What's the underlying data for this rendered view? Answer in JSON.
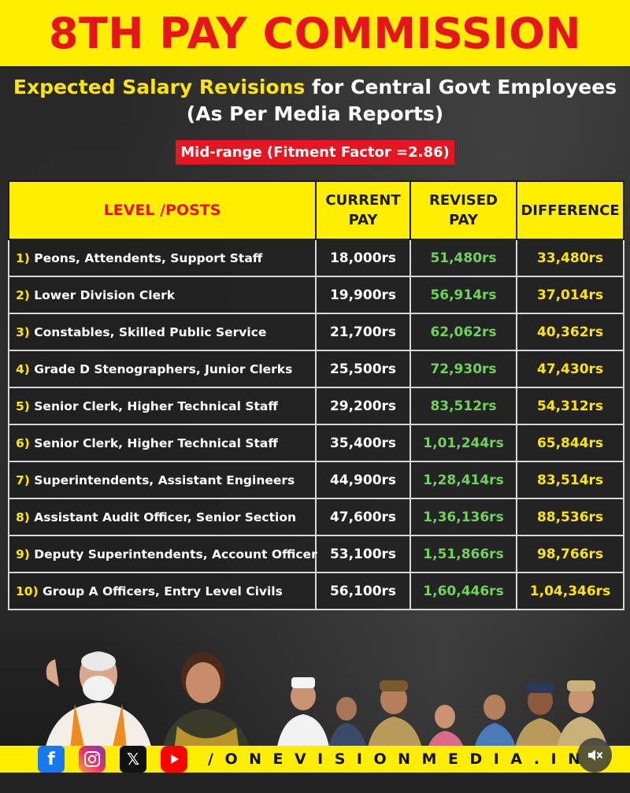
{
  "banner": {
    "title": "8TH PAY COMMISSION"
  },
  "subtitle": {
    "highlight": "Expected Salary Revisions",
    "rest": " for Central Govt Employees",
    "line2": "(As Per Media Reports)"
  },
  "tag": "Mid-range (Fitment Factor =2.86)",
  "table": {
    "headers": {
      "posts": "LEVEL /POSTS",
      "current_1": "CURRENT",
      "current_2": "PAY",
      "revised_1": "REVISED",
      "revised_2": "PAY",
      "difference": "DIFFERENCE"
    },
    "rows": [
      {
        "idx": "1)",
        "post": " Peons, Attendents, Support Staff",
        "current": "18,000rs",
        "revised": "51,480rs",
        "difference": "33,480rs"
      },
      {
        "idx": "2)",
        "post": " Lower Division Clerk",
        "current": "19,900rs",
        "revised": "56,914rs",
        "difference": "37,014rs"
      },
      {
        "idx": "3)",
        "post": " Constables, Skilled Public Service",
        "current": "21,700rs",
        "revised": "62,062rs",
        "difference": "40,362rs"
      },
      {
        "idx": "4)",
        "post": " Grade D Stenographers, Junior Clerks",
        "current": "25,500rs",
        "revised": "72,930rs",
        "difference": "47,430rs"
      },
      {
        "idx": "5)",
        "post": " Senior Clerk, Higher Technical Staff",
        "current": "29,200rs",
        "revised": "83,512rs",
        "difference": "54,312rs"
      },
      {
        "idx": "6)",
        "post": " Senior Clerk, Higher Technical Staff",
        "current": "35,400rs",
        "revised": "1,01,244rs",
        "difference": "65,844rs"
      },
      {
        "idx": "7)",
        "post": " Superintendents, Assistant Engineers",
        "current": "44,900rs",
        "revised": "1,28,414rs",
        "difference": "83,514rs"
      },
      {
        "idx": "8)",
        "post": " Assistant Audit Officer, Senior Section",
        "current": "47,600rs",
        "revised": "1,36,136rs",
        "difference": "88,536rs"
      },
      {
        "idx": "9)",
        "post": " Deputy Superintendents, Account Officer",
        "current": "53,100rs",
        "revised": "1,51,866rs",
        "difference": "98,766rs"
      },
      {
        "idx": "10)",
        "post": " Group A Officers, Entry Level Civils",
        "current": "56,100rs",
        "revised": "1,60,446rs",
        "difference": "1,04,346rs"
      }
    ]
  },
  "footer": {
    "social_icons": [
      "facebook-icon",
      "instagram-icon",
      "x-icon",
      "youtube-icon"
    ],
    "facebook_glyph": "f",
    "x_glyph": "𝕏",
    "handle": "/ONEVISIONMEDIA.IN"
  },
  "colors": {
    "banner_yellow": "#ffee00",
    "title_red": "#e8141c",
    "revised_green": "#6fd35a",
    "difference_yellow": "#ffe600"
  }
}
